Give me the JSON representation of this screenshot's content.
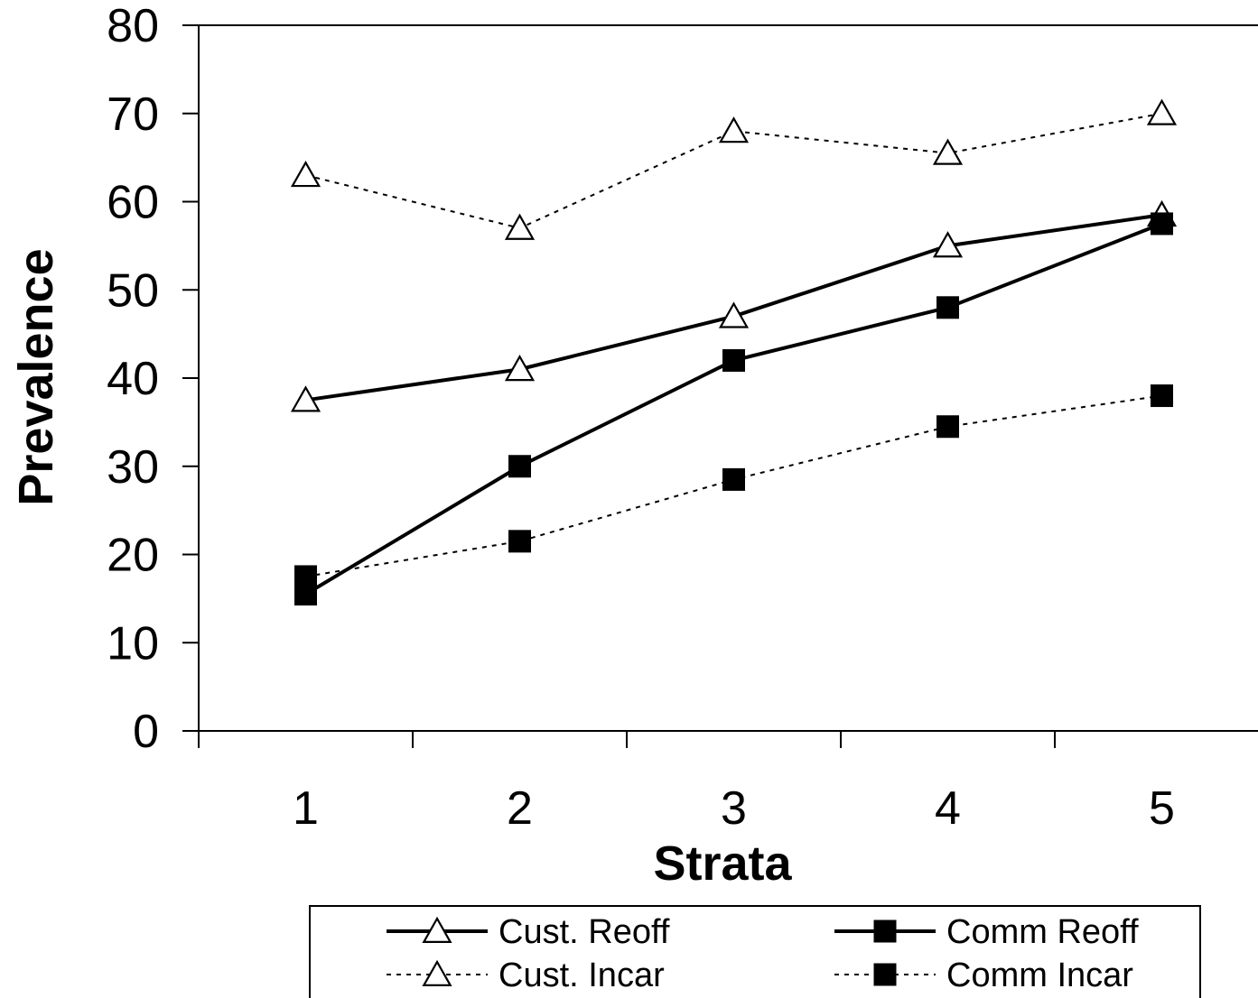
{
  "chart_data": {
    "type": "line",
    "title": "Strata",
    "xlabel": "Strata",
    "ylabel": "Prevalence",
    "categories": [
      "1",
      "2",
      "3",
      "4",
      "5"
    ],
    "ylim": [
      0,
      80
    ],
    "yticks": [
      "0",
      "10",
      "20",
      "30",
      "40",
      "50",
      "60",
      "70",
      "80"
    ],
    "grid": false,
    "legend_position": "bottom",
    "series": [
      {
        "name": "Cust. Reoff",
        "values": [
          37.5,
          41,
          47,
          55,
          58.5
        ],
        "line": "solid",
        "marker": "open-triangle"
      },
      {
        "name": "Comm Reoff",
        "values": [
          15.5,
          30,
          42,
          48,
          57.5
        ],
        "line": "solid",
        "marker": "filled-square"
      },
      {
        "name": "Cust. Incar",
        "values": [
          63,
          57,
          68,
          65.5,
          70
        ],
        "line": "dotted",
        "marker": "open-triangle"
      },
      {
        "name": "Comm Incar",
        "values": [
          17.5,
          21.5,
          28.5,
          34.5,
          38
        ],
        "line": "dotted",
        "marker": "filled-square"
      }
    ]
  }
}
